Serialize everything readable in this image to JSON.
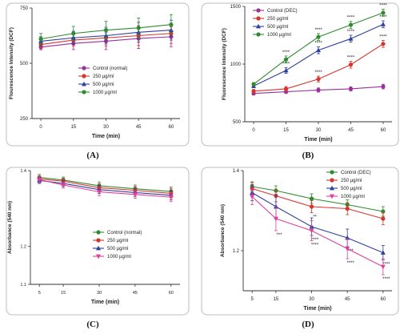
{
  "chart_data": [
    {
      "panel": "(A)",
      "type": "line",
      "xlabel": "Time (min)",
      "ylabel": "Flourescence Intensity (DCF)",
      "x": [
        0,
        15,
        30,
        45,
        60
      ],
      "xticks": [
        "0",
        "15",
        "30",
        "45",
        "60"
      ],
      "ylim": [
        250,
        750
      ],
      "yticks": [
        "250",
        "500",
        "750"
      ],
      "ytick_values": [
        250,
        500,
        750
      ],
      "legend_position": "center-right",
      "series": [
        {
          "name": "Control (normal)",
          "color": "#9b2f9b",
          "marker": "circle",
          "values": [
            573,
            590,
            600,
            612,
            620
          ],
          "err": [
            12,
            28,
            38,
            45,
            45
          ],
          "sig": []
        },
        {
          "name": "250 µg/ml",
          "color": "#d9342b",
          "marker": "circle",
          "values": [
            585,
            605,
            615,
            625,
            635
          ],
          "err": [
            15,
            28,
            38,
            45,
            45
          ],
          "sig": []
        },
        {
          "name": "500 µg/ml",
          "color": "#2f3fa0",
          "marker": "triangle",
          "values": [
            600,
            615,
            625,
            640,
            650
          ],
          "err": [
            20,
            30,
            38,
            45,
            45
          ],
          "sig": []
        },
        {
          "name": "1000 µg/ml",
          "color": "#2e8b2e",
          "marker": "circle",
          "values": [
            610,
            635,
            650,
            660,
            675
          ],
          "err": [
            25,
            32,
            40,
            45,
            45
          ],
          "sig": []
        }
      ]
    },
    {
      "panel": "(B)",
      "type": "line",
      "xlabel": "Time (min)",
      "ylabel": "Fluorescence Intensity (DCF)",
      "x": [
        0,
        15,
        30,
        45,
        60
      ],
      "xticks": [
        "0",
        "15",
        "30",
        "45",
        "60"
      ],
      "ylim": [
        500,
        1500
      ],
      "yticks": [
        "500",
        "1000",
        "1500"
      ],
      "ytick_values": [
        500,
        1000,
        1500
      ],
      "legend_position": "top-left",
      "series": [
        {
          "name": "Control (DEC)",
          "color": "#9b2f9b",
          "marker": "circle",
          "values": [
            745,
            760,
            775,
            785,
            805
          ],
          "err": [
            12,
            15,
            18,
            18,
            20
          ],
          "sig": [
            "",
            "",
            "",
            "",
            ""
          ]
        },
        {
          "name": "250 µg/ml",
          "color": "#d9342b",
          "marker": "circle",
          "values": [
            765,
            785,
            870,
            995,
            1175
          ],
          "err": [
            15,
            20,
            25,
            30,
            30
          ],
          "sig": [
            "",
            "",
            "****",
            "****",
            "****"
          ]
        },
        {
          "name": "500 µg/ml",
          "color": "#2f3fa0",
          "marker": "triangle",
          "values": [
            810,
            945,
            1120,
            1220,
            1345
          ],
          "err": [
            15,
            25,
            30,
            30,
            30
          ],
          "sig": [
            "",
            "****",
            "****",
            "****",
            "****"
          ]
        },
        {
          "name": "1000 µg/ml",
          "color": "#2e8b2e",
          "marker": "circle",
          "values": [
            825,
            1040,
            1235,
            1340,
            1445
          ],
          "err": [
            15,
            30,
            30,
            30,
            30
          ],
          "sig": [
            "",
            "****",
            "****",
            "****",
            "****"
          ]
        }
      ]
    },
    {
      "panel": "(C)",
      "type": "line",
      "xlabel": "Time (min)",
      "ylabel": "Absorbance (540 nm)",
      "x": [
        5,
        15,
        30,
        45,
        60
      ],
      "xticks": [
        "5",
        "15",
        "30",
        "45",
        "60"
      ],
      "ylim": [
        1.1,
        1.4
      ],
      "yticks": [
        "1.1",
        "1.2",
        "1.4"
      ],
      "ytick_values": [
        1.1,
        1.2,
        1.4
      ],
      "legend_position": "bottom-right",
      "series": [
        {
          "name": "Control (normal)",
          "color": "#2e8b2e",
          "marker": "circle",
          "values": [
            1.382,
            1.375,
            1.36,
            1.352,
            1.345
          ],
          "err": [
            0.008,
            0.008,
            0.01,
            0.01,
            0.012
          ],
          "sig": []
        },
        {
          "name": "250 µg/ml",
          "color": "#d9342b",
          "marker": "circle",
          "values": [
            1.378,
            1.372,
            1.355,
            1.348,
            1.34
          ],
          "err": [
            0.008,
            0.008,
            0.01,
            0.01,
            0.012
          ],
          "sig": []
        },
        {
          "name": "500 µg/ml",
          "color": "#2f3fa0",
          "marker": "triangle",
          "values": [
            1.374,
            1.366,
            1.35,
            1.342,
            1.335
          ],
          "err": [
            0.008,
            0.008,
            0.01,
            0.01,
            0.012
          ],
          "sig": []
        },
        {
          "name": "1000 µg/ml",
          "color": "#e0409b",
          "marker": "triangle-down",
          "values": [
            1.376,
            1.362,
            1.344,
            1.337,
            1.33
          ],
          "err": [
            0.008,
            0.008,
            0.01,
            0.01,
            0.012
          ],
          "sig": []
        }
      ]
    },
    {
      "panel": "(D)",
      "type": "line",
      "xlabel": "Time (min)",
      "ylabel": "Absorbance (540 nm)",
      "x": [
        5,
        15,
        30,
        45,
        60
      ],
      "xticks": [
        "5",
        "15",
        "30",
        "45",
        "60"
      ],
      "ylim": [
        1.1,
        1.4
      ],
      "yticks": [
        "1.2",
        "1.4"
      ],
      "ytick_values": [
        1.2,
        1.4
      ],
      "legend_position": "top-right",
      "series": [
        {
          "name": "Control (DEC)",
          "color": "#2e8b2e",
          "marker": "circle",
          "values": [
            1.36,
            1.35,
            1.33,
            1.315,
            1.298
          ],
          "err": [
            0.012,
            0.012,
            0.012,
            0.012,
            0.012
          ],
          "sig": [
            "",
            "",
            "",
            "",
            ""
          ]
        },
        {
          "name": "250 µg/ml",
          "color": "#d9342b",
          "marker": "circle",
          "values": [
            1.355,
            1.337,
            1.31,
            1.305,
            1.28
          ],
          "err": [
            0.015,
            0.015,
            0.015,
            0.015,
            0.015
          ],
          "sig": [
            "",
            "",
            "**",
            "",
            ""
          ]
        },
        {
          "name": "500 µg/ml",
          "color": "#2f3fa0",
          "marker": "triangle",
          "values": [
            1.345,
            1.31,
            1.26,
            1.232,
            1.195
          ],
          "err": [
            0.02,
            0.03,
            0.022,
            0.022,
            0.018
          ],
          "sig": [
            "",
            "",
            "****",
            "***",
            "****"
          ]
        },
        {
          "name": "1000 µg/ml",
          "color": "#e0409b",
          "marker": "triangle-down",
          "values": [
            1.335,
            1.28,
            1.25,
            1.205,
            1.16
          ],
          "err": [
            0.02,
            0.03,
            0.025,
            0.025,
            0.02
          ],
          "sig": [
            "",
            "***",
            "****",
            "****",
            "****"
          ]
        }
      ]
    }
  ]
}
